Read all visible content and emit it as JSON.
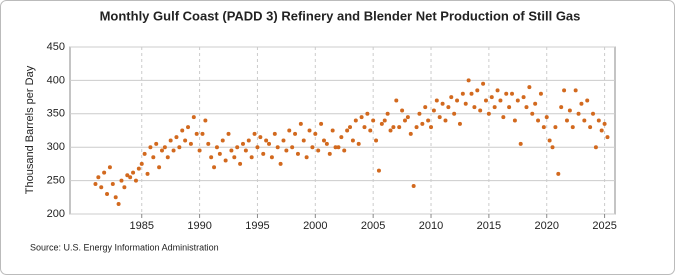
{
  "chart_data": {
    "type": "scatter",
    "title": "Monthly Gulf Coast (PADD 3) Refinery and Blender Net Production of Still Gas",
    "y_label": "Thousand Barrels per Day",
    "source": "Source: U.S. Energy Information Administration",
    "color": "#d2691e",
    "grid": true,
    "xlim": [
      1978.8,
      2025.9
    ],
    "xticks": [
      1985,
      1990,
      1995,
      2000,
      2005,
      2010,
      2015,
      2020,
      2025
    ],
    "ylim": [
      200,
      450
    ],
    "yticks": [
      200,
      250,
      300,
      350,
      400,
      450
    ],
    "x": [
      1981,
      1981.25,
      1981.5,
      1981.75,
      1982,
      1982.25,
      1982.5,
      1982.75,
      1983,
      1983.25,
      1983.5,
      1983.75,
      1984,
      1984.25,
      1984.5,
      1984.75,
      1985,
      1985.25,
      1985.5,
      1985.75,
      1986,
      1986.25,
      1986.5,
      1986.75,
      1987,
      1987.25,
      1987.5,
      1987.75,
      1988,
      1988.25,
      1988.5,
      1988.75,
      1989,
      1989.25,
      1989.5,
      1989.75,
      1990,
      1990.25,
      1990.5,
      1990.75,
      1991,
      1991.25,
      1991.5,
      1991.75,
      1992,
      1992.25,
      1992.5,
      1992.75,
      1993,
      1993.25,
      1993.5,
      1993.75,
      1994,
      1994.25,
      1994.5,
      1994.75,
      1995,
      1995.25,
      1995.5,
      1995.75,
      1996,
      1996.25,
      1996.5,
      1996.75,
      1997,
      1997.25,
      1997.5,
      1997.75,
      1998,
      1998.25,
      1998.5,
      1998.75,
      1999,
      1999.25,
      1999.5,
      1999.75,
      2000,
      2000.25,
      2000.5,
      2000.75,
      2001,
      2001.25,
      2001.5,
      2001.75,
      2002,
      2002.25,
      2002.5,
      2002.75,
      2003,
      2003.25,
      2003.5,
      2003.75,
      2004,
      2004.25,
      2004.5,
      2004.75,
      2005,
      2005.25,
      2005.5,
      2005.75,
      2006,
      2006.25,
      2006.5,
      2006.75,
      2007,
      2007.25,
      2007.5,
      2007.75,
      2008,
      2008.25,
      2008.5,
      2008.75,
      2009,
      2009.25,
      2009.5,
      2009.75,
      2010,
      2010.25,
      2010.5,
      2010.75,
      2011,
      2011.25,
      2011.5,
      2011.75,
      2012,
      2012.25,
      2012.5,
      2012.75,
      2013,
      2013.25,
      2013.5,
      2013.75,
      2014,
      2014.25,
      2014.5,
      2014.75,
      2015,
      2015.25,
      2015.5,
      2015.75,
      2016,
      2016.25,
      2016.5,
      2016.75,
      2017,
      2017.25,
      2017.5,
      2017.75,
      2018,
      2018.25,
      2018.5,
      2018.75,
      2019,
      2019.25,
      2019.5,
      2019.75,
      2020,
      2020.25,
      2020.5,
      2020.75,
      2021,
      2021.25,
      2021.5,
      2021.75,
      2022,
      2022.25,
      2022.5,
      2022.75,
      2023,
      2023.25,
      2023.5,
      2023.75,
      2024,
      2024.25,
      2024.5,
      2024.75,
      2025,
      2025.25
    ],
    "values": [
      245,
      255,
      240,
      262,
      230,
      270,
      245,
      225,
      215,
      250,
      240,
      258,
      255,
      262,
      250,
      268,
      275,
      290,
      260,
      300,
      285,
      305,
      270,
      295,
      300,
      285,
      310,
      295,
      315,
      300,
      325,
      310,
      330,
      305,
      345,
      320,
      295,
      320,
      340,
      305,
      285,
      270,
      300,
      290,
      310,
      280,
      320,
      295,
      285,
      300,
      275,
      305,
      295,
      310,
      285,
      320,
      300,
      315,
      290,
      310,
      305,
      285,
      320,
      300,
      275,
      310,
      295,
      325,
      300,
      320,
      290,
      335,
      310,
      285,
      325,
      300,
      320,
      295,
      335,
      310,
      305,
      290,
      325,
      300,
      300,
      315,
      295,
      325,
      330,
      310,
      340,
      305,
      345,
      330,
      350,
      325,
      340,
      310,
      265,
      335,
      340,
      350,
      325,
      330,
      370,
      330,
      355,
      340,
      345,
      320,
      242,
      330,
      350,
      335,
      360,
      340,
      330,
      355,
      370,
      345,
      365,
      340,
      360,
      375,
      350,
      370,
      335,
      380,
      365,
      400,
      380,
      360,
      385,
      355,
      395,
      370,
      350,
      375,
      360,
      385,
      370,
      345,
      380,
      360,
      380,
      340,
      370,
      305,
      375,
      360,
      390,
      350,
      365,
      340,
      380,
      330,
      345,
      310,
      300,
      330,
      260,
      360,
      385,
      340,
      355,
      330,
      385,
      350,
      365,
      340,
      370,
      330,
      350,
      300,
      340,
      325,
      335,
      315
    ]
  }
}
